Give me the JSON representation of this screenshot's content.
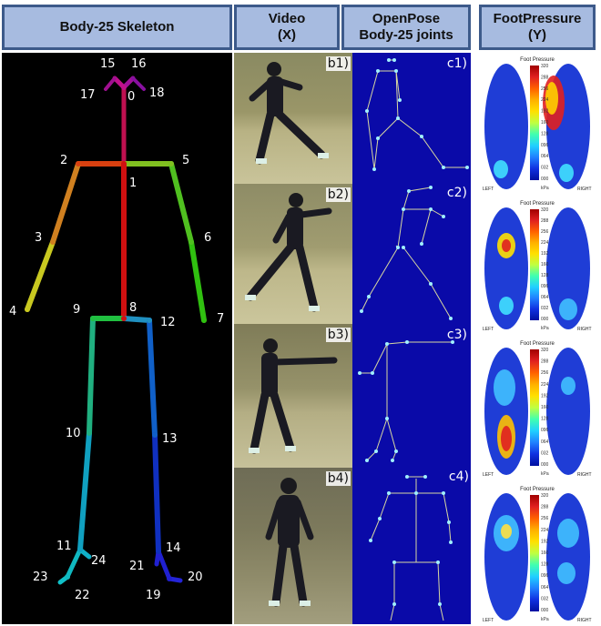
{
  "headers": {
    "skeleton": "Body-25 Skeleton",
    "video_line1": "Video",
    "video_line2": "(X)",
    "openpose_line1": "OpenPose",
    "openpose_line2": "Body-25 joints",
    "footpressure_line1": "FootPressure",
    "footpressure_line2": "(Y)"
  },
  "joint_labels": [
    "0",
    "1",
    "2",
    "3",
    "4",
    "5",
    "6",
    "7",
    "8",
    "9",
    "10",
    "11",
    "12",
    "13",
    "14",
    "15",
    "16",
    "17",
    "18",
    "19",
    "20",
    "21",
    "22",
    "23",
    "24"
  ],
  "video_labels": [
    "b1)",
    "b2)",
    "b3)",
    "b4)"
  ],
  "pose_labels": [
    "c1)",
    "c2)",
    "c3)",
    "c4)"
  ],
  "footpressure": {
    "title": "Foot Pressure",
    "left": "LEFT",
    "right": "RIGHT",
    "scale": [
      "320",
      "288",
      "256",
      "224",
      "192",
      "160",
      "128",
      "096",
      "064",
      "032",
      "000"
    ],
    "unit": "kPa"
  },
  "colors": {
    "header_fill": "#a7bbe0",
    "header_border": "#3d5a8a",
    "pose_bg": "#0a0aa8",
    "fp_bg": "#ffffff",
    "foot_base": "#1f3dd6"
  }
}
